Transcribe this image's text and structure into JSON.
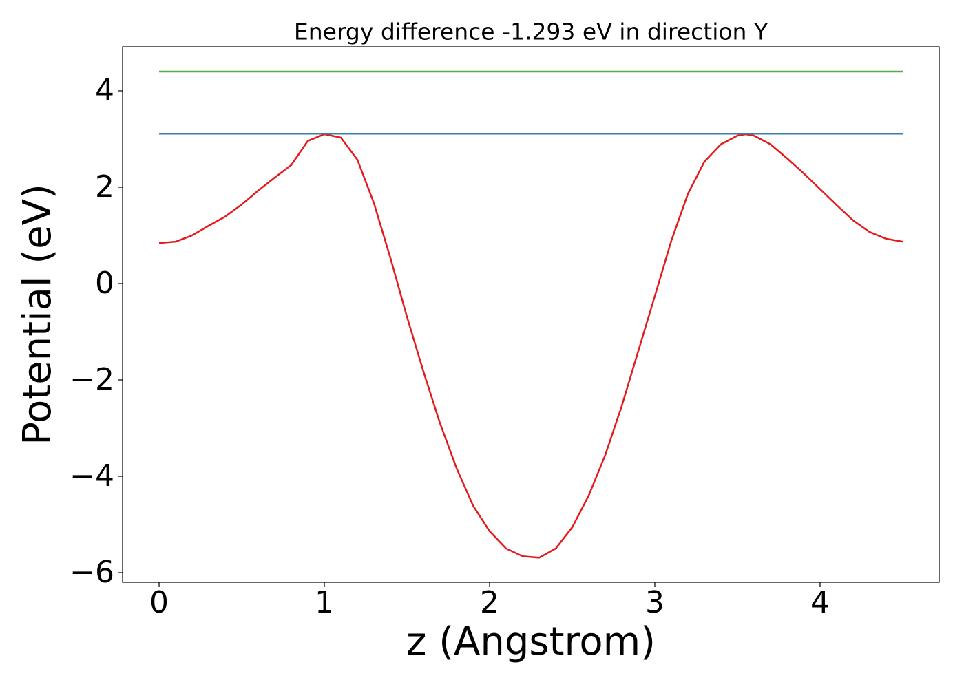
{
  "chart_data": {
    "type": "line",
    "title": "Energy difference -1.293 eV in direction Y",
    "xlabel": "z (Angstrom)",
    "ylabel": "Potential (eV)",
    "xlim": [
      -0.221,
      4.721
    ],
    "ylim": [
      -6.2,
      4.914
    ],
    "xticks": [
      0,
      1,
      2,
      3,
      4
    ],
    "yticks": [
      {
        "value": -6,
        "label": "−6"
      },
      {
        "value": -4,
        "label": "−4"
      },
      {
        "value": -2,
        "label": "−2"
      },
      0,
      2,
      4
    ],
    "series": [
      {
        "color": "#e41a1c",
        "x": [
          0,
          0.1,
          0.2,
          0.3,
          0.4,
          0.5,
          0.6,
          0.7,
          0.8,
          0.9,
          1.0,
          1.1,
          1.2,
          1.3,
          1.4,
          1.5,
          1.6,
          1.7,
          1.8,
          1.9,
          2.0,
          2.1,
          2.2,
          2.3,
          2.4,
          2.5,
          2.6,
          2.7,
          2.8,
          2.9,
          3.0,
          3.1,
          3.2,
          3.3,
          3.4,
          3.5,
          3.55,
          3.6,
          3.7,
          3.8,
          3.9,
          4.0,
          4.1,
          4.2,
          4.3,
          4.4,
          4.5
        ],
        "values": [
          0.84,
          0.87,
          1.0,
          1.2,
          1.39,
          1.64,
          1.93,
          2.2,
          2.46,
          2.96,
          3.1,
          3.03,
          2.57,
          1.67,
          0.53,
          -0.69,
          -1.83,
          -2.9,
          -3.83,
          -4.61,
          -5.14,
          -5.5,
          -5.66,
          -5.69,
          -5.5,
          -5.06,
          -4.4,
          -3.56,
          -2.54,
          -1.4,
          -0.26,
          0.89,
          1.86,
          2.53,
          2.89,
          3.07,
          3.1,
          3.07,
          2.89,
          2.6,
          2.29,
          1.96,
          1.63,
          1.31,
          1.07,
          0.93,
          0.87
        ]
      },
      {
        "color": "#3a7fa8",
        "x": [
          0,
          4.5
        ],
        "values": [
          3.11,
          3.11
        ]
      },
      {
        "color": "#4daf4a",
        "x": [
          0,
          4.5
        ],
        "values": [
          4.4,
          4.4
        ]
      }
    ]
  }
}
